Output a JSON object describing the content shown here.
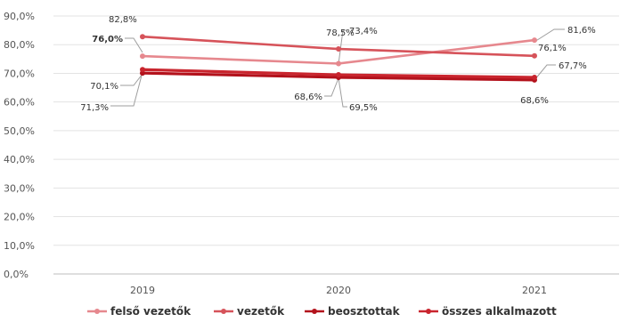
{
  "chart_data": {
    "type": "line",
    "categories": [
      "2019",
      "2020",
      "2021"
    ],
    "ylim": [
      0,
      90
    ],
    "yticks": [
      "0,0%",
      "10,0%",
      "20,0%",
      "30,0%",
      "40,0%",
      "50,0%",
      "60,0%",
      "70,0%",
      "80,0%",
      "90,0%"
    ],
    "grid": true,
    "legend_position": "bottom",
    "series": [
      {
        "name": "felső vezetők",
        "values": [
          76.0,
          73.4,
          81.6
        ],
        "labels": [
          "76,0%",
          "73,4%",
          "81,6%"
        ],
        "color": "#e6888e"
      },
      {
        "name": "vezetők",
        "values": [
          82.8,
          78.5,
          76.1
        ],
        "labels": [
          "82,8%",
          "78,5%",
          "76,1%"
        ],
        "color": "#d6535a"
      },
      {
        "name": "beosztottak",
        "values": [
          70.1,
          68.6,
          67.7
        ],
        "labels": [
          "70,1%",
          "68,6%",
          "67,7%"
        ],
        "color": "#b3121c"
      },
      {
        "name": "összes alkalmazott",
        "values": [
          71.3,
          69.5,
          68.6
        ],
        "labels": [
          "71,3%",
          "69,5%",
          "68,6%"
        ],
        "color": "#c9252e"
      }
    ]
  }
}
